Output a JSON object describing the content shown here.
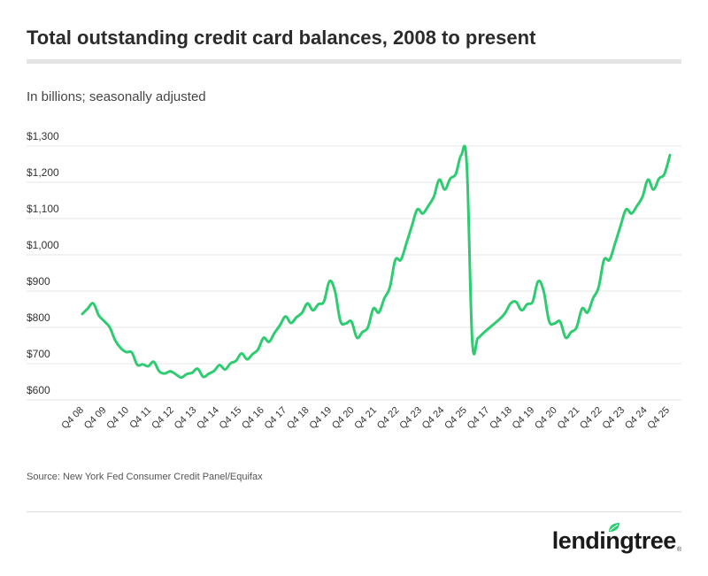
{
  "title": "Total outstanding credit card balances, 2008 to present",
  "subtitle": "In billions; seasonally adjusted",
  "source": "Source: New York Fed Consumer Credit Panel/Equifax",
  "logo": {
    "word": "lendingtree",
    "mark": "®"
  },
  "colors": {
    "line": "#2ecc71",
    "grid": "#e6e6e6",
    "accent": "#2ecc71"
  },
  "chart_data": {
    "type": "line",
    "title": "Total outstanding credit card balances, 2008 to present",
    "ylabel": "In billions; seasonally adjusted",
    "ylim": [
      600,
      1300
    ],
    "yticks": [
      "$600",
      "$700",
      "$800",
      "$900",
      "$1,000",
      "$1,100",
      "$1,200",
      "$1,300"
    ],
    "x_ticks": [
      "Q4 08",
      "Q4 09",
      "Q4 10",
      "Q4 11",
      "Q4 12",
      "Q4 13",
      "Q4 14",
      "Q4 15",
      "Q4 16",
      "Q4 17",
      "Q4 18",
      "Q4 19",
      "Q4 20",
      "Q4 21",
      "Q4 22",
      "Q4 23",
      "Q4 24",
      "Q4 25",
      "Q4 17",
      "Q4 18",
      "Q4 19",
      "Q4 20",
      "Q4 21",
      "Q4 22",
      "Q4 23",
      "Q4 24",
      "Q4 25"
    ],
    "grid": true,
    "legend": "none",
    "series": [
      {
        "values": [
          837,
          852,
          866,
          833,
          817,
          800,
          764,
          743,
          732,
          731,
          697,
          698,
          693,
          705,
          679,
          673,
          679,
          671,
          662,
          671,
          675,
          686,
          664,
          672,
          680,
          696,
          684,
          701,
          708,
          728,
          712,
          726,
          739,
          771,
          760,
          785,
          806,
          830,
          812,
          828,
          840,
          866,
          847,
          864,
          871,
          927,
          900,
          817,
          811,
          816,
          772,
          787,
          800,
          852,
          841,
          880,
          910,
          986,
          986,
          1031,
          1079,
          1125,
          1114,
          1135,
          1160,
          1207,
          1180,
          1210,
          1223,
          1275,
          1250,
          764,
          770,
          784,
          797,
          810,
          823,
          840,
          866,
          870,
          847,
          864,
          871,
          927,
          900,
          817,
          811,
          816,
          772,
          787,
          800,
          852,
          841,
          880,
          910,
          986,
          986,
          1031,
          1079,
          1125,
          1114,
          1135,
          1160,
          1207,
          1180,
          1210,
          1223,
          1275
        ]
      }
    ]
  }
}
